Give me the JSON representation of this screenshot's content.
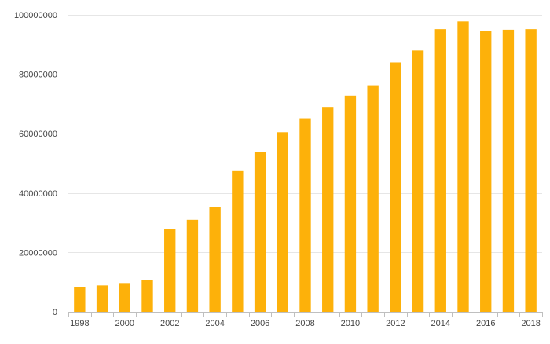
{
  "colors": {
    "bar": "#FDB10A",
    "grid": "#E6E6E6",
    "axis": "#BFBFBF",
    "text": "#444444"
  },
  "chart_data": {
    "type": "bar",
    "title": "",
    "xlabel": "",
    "ylabel": "",
    "grid": "horizontal",
    "categories": [
      "1998",
      "1999",
      "2000",
      "2001",
      "2002",
      "2003",
      "2004",
      "2005",
      "2006",
      "2007",
      "2008",
      "2009",
      "2010",
      "2011",
      "2012",
      "2013",
      "2014",
      "2015",
      "2016",
      "2017",
      "2018"
    ],
    "values": [
      8400000,
      8900000,
      9700000,
      10700000,
      28000000,
      31000000,
      35200000,
      47400000,
      53800000,
      60500000,
      65200000,
      69000000,
      72800000,
      76300000,
      84000000,
      88000000,
      95200000,
      97800000,
      94600000,
      95000000,
      95200000
    ],
    "x_tick_labels": [
      "1998",
      "2000",
      "2002",
      "2004",
      "2006",
      "2008",
      "2010",
      "2012",
      "2014",
      "2016",
      "2018"
    ],
    "y_tick_labels": [
      "0",
      "20000000",
      "40000000",
      "60000000",
      "80000000",
      "100000000"
    ],
    "y_ticks": [
      0,
      20000000,
      40000000,
      60000000,
      80000000,
      100000000
    ],
    "ylim": [
      0,
      100000000
    ]
  }
}
